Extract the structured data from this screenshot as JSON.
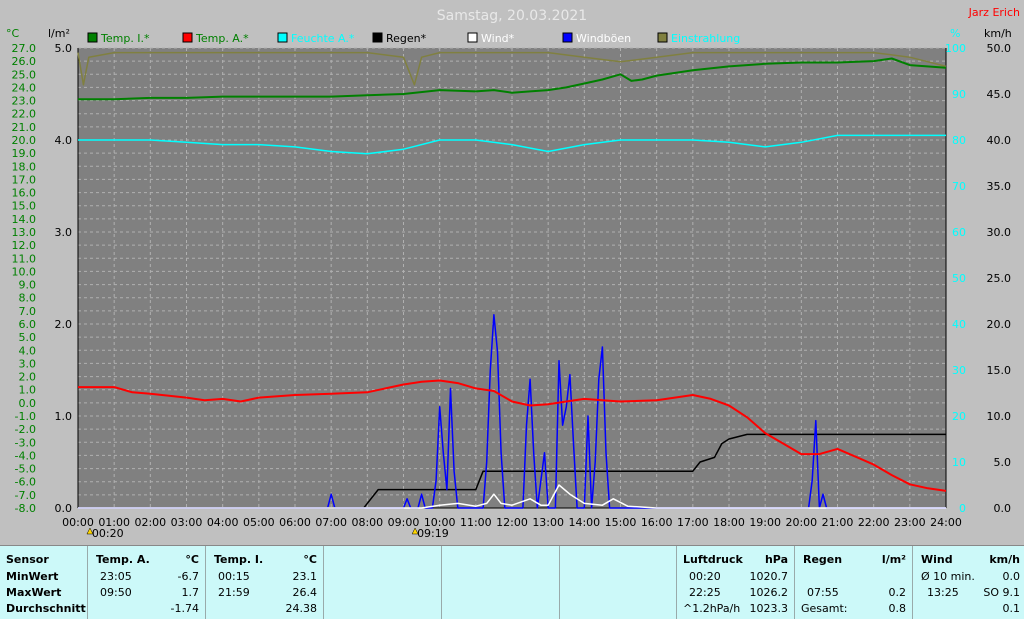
{
  "title": "Samstag, 20.03.2021",
  "author": "Jarz Erich",
  "colors": {
    "background": "#808080",
    "grid": "#b0b0b0",
    "temp_inside": "#008000",
    "temp_outside": "#ff0000",
    "humidity": "#00ffff",
    "rain": "#000000",
    "wind": "#ffffff",
    "gusts": "#0000ff",
    "radiation": "#808040"
  },
  "chart_data": {
    "type": "line",
    "x_ticks": [
      "00:00",
      "01:00",
      "02:00",
      "03:00",
      "04:00",
      "05:00",
      "06:00",
      "07:00",
      "08:00",
      "09:00",
      "10:00",
      "11:00",
      "12:00",
      "13:00",
      "14:00",
      "15:00",
      "16:00",
      "17:00",
      "18:00",
      "19:00",
      "20:00",
      "21:00",
      "22:00",
      "23:00",
      "24:00"
    ],
    "xlim": [
      0,
      24
    ],
    "axes": {
      "temp_c": {
        "unit_label": "°C",
        "range": [
          -8,
          27
        ],
        "ticks": [
          "27.0",
          "26.0",
          "25.0",
          "24.0",
          "23.0",
          "22.0",
          "21.0",
          "20.0",
          "19.0",
          "18.0",
          "17.0",
          "16.0",
          "15.0",
          "14.0",
          "13.0",
          "12.0",
          "11.0",
          "10.0",
          "9.0",
          "8.0",
          "7.0",
          "6.0",
          "5.0",
          "4.0",
          "3.0",
          "2.0",
          "1.0",
          "0.0",
          "-1.0",
          "-2.0",
          "-3.0",
          "-4.0",
          "-5.0",
          "-6.0",
          "-7.0",
          "-8.0"
        ]
      },
      "rain_lm2": {
        "unit_label": "l/m²",
        "range": [
          0,
          5
        ],
        "ticks": [
          "5.0",
          "4.0",
          "3.0",
          "2.0",
          "1.0",
          "0.0"
        ]
      },
      "humidity_pct": {
        "unit_label": "%",
        "range": [
          0,
          100
        ],
        "ticks": [
          "100",
          "90",
          "80",
          "70",
          "60",
          "50",
          "40",
          "30",
          "20",
          "10",
          "0"
        ]
      },
      "wind_kmh": {
        "unit_label": "km/h",
        "range": [
          0,
          50
        ],
        "ticks": [
          "50.0",
          "45.0",
          "40.0",
          "35.0",
          "30.0",
          "25.0",
          "20.0",
          "15.0",
          "10.0",
          "5.0",
          "0.0"
        ]
      }
    },
    "markers": [
      {
        "x": 0.33,
        "label": "00:20"
      },
      {
        "x": 9.32,
        "label": "09:19"
      }
    ],
    "legend": [
      "Temp. I.*",
      "Temp. A.*",
      "Feuchte A.*",
      "Regen*",
      "Wind*",
      "Windböen",
      "Einstrahlung"
    ],
    "series": [
      {
        "name": "Temp. I.*",
        "axis": "temp_c",
        "color": "#008000",
        "points": [
          [
            0,
            23.1
          ],
          [
            1,
            23.1
          ],
          [
            2,
            23.2
          ],
          [
            3,
            23.2
          ],
          [
            4,
            23.3
          ],
          [
            5,
            23.3
          ],
          [
            6,
            23.3
          ],
          [
            7,
            23.3
          ],
          [
            8,
            23.4
          ],
          [
            9,
            23.5
          ],
          [
            10,
            23.8
          ],
          [
            11,
            23.7
          ],
          [
            11.5,
            23.8
          ],
          [
            12,
            23.6
          ],
          [
            12.5,
            23.7
          ],
          [
            13,
            23.8
          ],
          [
            13.5,
            24.0
          ],
          [
            14,
            24.3
          ],
          [
            14.5,
            24.6
          ],
          [
            15,
            25.0
          ],
          [
            15.3,
            24.5
          ],
          [
            15.6,
            24.6
          ],
          [
            16,
            24.9
          ],
          [
            17,
            25.3
          ],
          [
            18,
            25.6
          ],
          [
            19,
            25.8
          ],
          [
            20,
            25.9
          ],
          [
            21,
            25.9
          ],
          [
            22,
            26.0
          ],
          [
            22.5,
            26.2
          ],
          [
            23,
            25.7
          ],
          [
            24,
            25.5
          ]
        ]
      },
      {
        "name": "Temp. A.*",
        "axis": "temp_c",
        "color": "#ff0000",
        "points": [
          [
            0,
            1.2
          ],
          [
            1,
            1.2
          ],
          [
            1.5,
            0.8
          ],
          [
            2,
            0.7
          ],
          [
            3,
            0.4
          ],
          [
            3.5,
            0.2
          ],
          [
            4,
            0.3
          ],
          [
            4.5,
            0.1
          ],
          [
            5,
            0.4
          ],
          [
            6,
            0.6
          ],
          [
            7,
            0.7
          ],
          [
            8,
            0.8
          ],
          [
            8.5,
            1.1
          ],
          [
            9,
            1.4
          ],
          [
            9.5,
            1.6
          ],
          [
            10,
            1.7
          ],
          [
            10.5,
            1.5
          ],
          [
            11,
            1.1
          ],
          [
            11.5,
            0.9
          ],
          [
            12,
            0.1
          ],
          [
            12.5,
            -0.2
          ],
          [
            13,
            -0.1
          ],
          [
            13.5,
            0.1
          ],
          [
            14,
            0.3
          ],
          [
            14.5,
            0.2
          ],
          [
            15,
            0.1
          ],
          [
            16,
            0.2
          ],
          [
            16.5,
            0.4
          ],
          [
            17,
            0.6
          ],
          [
            17.5,
            0.3
          ],
          [
            18,
            -0.2
          ],
          [
            18.5,
            -1.1
          ],
          [
            19,
            -2.3
          ],
          [
            19.5,
            -3.1
          ],
          [
            20,
            -3.9
          ],
          [
            20.5,
            -3.9
          ],
          [
            21,
            -3.5
          ],
          [
            21.5,
            -4.1
          ],
          [
            22,
            -4.7
          ],
          [
            22.5,
            -5.5
          ],
          [
            23,
            -6.2
          ],
          [
            23.5,
            -6.5
          ],
          [
            24,
            -6.7
          ]
        ]
      },
      {
        "name": "Feuchte A.*",
        "axis": "humidity_pct",
        "color": "#00ffff",
        "points": [
          [
            0,
            80
          ],
          [
            1,
            80
          ],
          [
            2,
            80
          ],
          [
            3,
            79.5
          ],
          [
            4,
            79
          ],
          [
            5,
            79
          ],
          [
            6,
            78.5
          ],
          [
            7,
            77.5
          ],
          [
            8,
            77
          ],
          [
            9,
            78
          ],
          [
            10,
            80
          ],
          [
            11,
            80
          ],
          [
            12,
            79
          ],
          [
            13,
            77.5
          ],
          [
            14,
            79
          ],
          [
            15,
            80
          ],
          [
            16,
            80
          ],
          [
            17,
            80
          ],
          [
            18,
            79.5
          ],
          [
            19,
            78.5
          ],
          [
            20,
            79.5
          ],
          [
            21,
            81
          ],
          [
            22,
            81
          ],
          [
            23,
            81
          ],
          [
            24,
            81
          ]
        ]
      },
      {
        "name": "Regen*",
        "axis": "rain_lm2",
        "color": "#000000",
        "points": [
          [
            0,
            0
          ],
          [
            7.9,
            0
          ],
          [
            8,
            0.05
          ],
          [
            8.3,
            0.2
          ],
          [
            9,
            0.2
          ],
          [
            10,
            0.2
          ],
          [
            11,
            0.2
          ],
          [
            11.2,
            0.4
          ],
          [
            12,
            0.4
          ],
          [
            13,
            0.4
          ],
          [
            14,
            0.4
          ],
          [
            15,
            0.4
          ],
          [
            16,
            0.4
          ],
          [
            17,
            0.4
          ],
          [
            17.2,
            0.5
          ],
          [
            17.6,
            0.55
          ],
          [
            17.8,
            0.7
          ],
          [
            18,
            0.75
          ],
          [
            18.5,
            0.8
          ],
          [
            19,
            0.8
          ],
          [
            20,
            0.8
          ],
          [
            21,
            0.8
          ],
          [
            22,
            0.8
          ],
          [
            23,
            0.8
          ],
          [
            24,
            0.8
          ]
        ]
      },
      {
        "name": "Wind*",
        "axis": "wind_kmh",
        "color": "#ffffff",
        "points": [
          [
            0,
            0
          ],
          [
            9.5,
            0
          ],
          [
            10,
            0.3
          ],
          [
            10.5,
            0.5
          ],
          [
            11,
            0.2
          ],
          [
            11.3,
            0.5
          ],
          [
            11.5,
            1.5
          ],
          [
            11.7,
            0.5
          ],
          [
            12,
            0.3
          ],
          [
            12.5,
            1.0
          ],
          [
            12.8,
            0.3
          ],
          [
            13,
            0.3
          ],
          [
            13.3,
            2.5
          ],
          [
            13.6,
            1.5
          ],
          [
            14,
            0.5
          ],
          [
            14.5,
            0.3
          ],
          [
            14.8,
            1.0
          ],
          [
            15.2,
            0.2
          ],
          [
            16,
            0
          ],
          [
            24,
            0
          ]
        ]
      },
      {
        "name": "Windböen",
        "axis": "wind_kmh",
        "color": "#0000ff",
        "points": [
          [
            0,
            0
          ],
          [
            6.9,
            0
          ],
          [
            7,
            1.5
          ],
          [
            7.1,
            0
          ],
          [
            9,
            0
          ],
          [
            9.1,
            1.0
          ],
          [
            9.2,
            0
          ],
          [
            9.4,
            0
          ],
          [
            9.5,
            1.5
          ],
          [
            9.6,
            0
          ],
          [
            9.8,
            0
          ],
          [
            9.9,
            3.0
          ],
          [
            10.0,
            11.0
          ],
          [
            10.1,
            6.0
          ],
          [
            10.2,
            2.0
          ],
          [
            10.3,
            13.0
          ],
          [
            10.4,
            4.0
          ],
          [
            10.5,
            0
          ],
          [
            11.2,
            0
          ],
          [
            11.3,
            5.0
          ],
          [
            11.4,
            15.0
          ],
          [
            11.5,
            21.0
          ],
          [
            11.6,
            17.0
          ],
          [
            11.7,
            6.0
          ],
          [
            11.8,
            0
          ],
          [
            12.3,
            0
          ],
          [
            12.4,
            9.0
          ],
          [
            12.5,
            14.0
          ],
          [
            12.6,
            6.0
          ],
          [
            12.7,
            0
          ],
          [
            12.9,
            6.0
          ],
          [
            13.0,
            0
          ],
          [
            13.2,
            0
          ],
          [
            13.3,
            16.0
          ],
          [
            13.4,
            9.0
          ],
          [
            13.5,
            11.0
          ],
          [
            13.6,
            14.5
          ],
          [
            13.7,
            7.0
          ],
          [
            13.8,
            0
          ],
          [
            14.0,
            0
          ],
          [
            14.1,
            10.0
          ],
          [
            14.2,
            0
          ],
          [
            14.3,
            5.0
          ],
          [
            14.4,
            14.0
          ],
          [
            14.5,
            17.5
          ],
          [
            14.6,
            6.0
          ],
          [
            14.7,
            0
          ],
          [
            20.2,
            0
          ],
          [
            20.3,
            3.0
          ],
          [
            20.4,
            9.5
          ],
          [
            20.5,
            0
          ],
          [
            20.6,
            1.5
          ],
          [
            20.7,
            0
          ],
          [
            24,
            0
          ]
        ]
      },
      {
        "name": "Einstrahlung",
        "axis": "humidity_pct",
        "color": "#808040",
        "points": [
          [
            0,
            99
          ],
          [
            0.15,
            92
          ],
          [
            0.3,
            98
          ],
          [
            1,
            99
          ],
          [
            2,
            99
          ],
          [
            3,
            99
          ],
          [
            4,
            99
          ],
          [
            5,
            99
          ],
          [
            6,
            99
          ],
          [
            7,
            99
          ],
          [
            8,
            99
          ],
          [
            9,
            98
          ],
          [
            9.3,
            92
          ],
          [
            9.5,
            98
          ],
          [
            10,
            99
          ],
          [
            11,
            99
          ],
          [
            12,
            99
          ],
          [
            13,
            99
          ],
          [
            14,
            98
          ],
          [
            15,
            97
          ],
          [
            16,
            98
          ],
          [
            17,
            99
          ],
          [
            18,
            99
          ],
          [
            19,
            99
          ],
          [
            20,
            99
          ],
          [
            21,
            99
          ],
          [
            22,
            99
          ],
          [
            23,
            98
          ],
          [
            24,
            96
          ]
        ]
      }
    ],
    "grid": true
  },
  "table": {
    "sensor": {
      "header": "Sensor",
      "rows": [
        "MinWert",
        "MaxWert",
        "Durchschnitt"
      ]
    },
    "temp_a": {
      "header": "Temp. A.",
      "unit": "°C",
      "times": [
        "23:05",
        "09:50",
        ""
      ],
      "values": [
        "-6.7",
        "1.7",
        "-1.74"
      ]
    },
    "temp_i": {
      "header": "Temp. I.",
      "unit": "°C",
      "times": [
        "00:15",
        "21:59",
        ""
      ],
      "values": [
        "23.1",
        "26.4",
        "24.38"
      ]
    },
    "pressure": {
      "header": "Luftdruck",
      "unit": "hPa",
      "times": [
        "00:20",
        "22:25",
        "^1.2hPa/h"
      ],
      "values": [
        "1020.7",
        "1026.2",
        "1023.3"
      ]
    },
    "rain": {
      "header": "Regen",
      "unit": "l/m²",
      "times": [
        "",
        "07:55",
        "Gesamt:"
      ],
      "values": [
        "",
        "0.2",
        "0.8"
      ]
    },
    "wind": {
      "header": "Wind",
      "unit": "km/h",
      "times": [
        "Ø 10 min.",
        "13:25",
        ""
      ],
      "values": [
        "0.0",
        "SO 9.1",
        "0.1"
      ]
    }
  }
}
